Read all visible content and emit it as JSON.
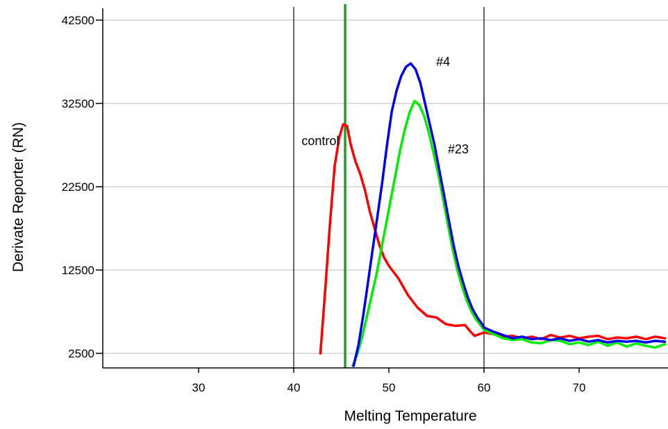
{
  "chart_data": {
    "type": "line",
    "xlabel": "Melting Temperature",
    "ylabel": "Derivate Reporter (RN)",
    "xlim": [
      20,
      79
    ],
    "ylim": [
      1000,
      44000
    ],
    "x_ticks": [
      30,
      40,
      50,
      60,
      70
    ],
    "y_ticks": [
      2500,
      12500,
      22500,
      32500,
      42500
    ],
    "grid": "horizontal",
    "legend": "none",
    "vertical_lines": [
      {
        "x": 40,
        "color": "#000000"
      },
      {
        "x": 45.4,
        "color": "#2a9a2a"
      },
      {
        "x": 60,
        "color": "#000000"
      }
    ],
    "annotations": [
      {
        "text": "control",
        "x": 42.8,
        "y": 28000
      },
      {
        "text": "#4",
        "x": 55.7,
        "y": 37500
      },
      {
        "text": "#23",
        "x": 57.3,
        "y": 27000
      }
    ],
    "series": [
      {
        "color": "#ff0000",
        "x": [
          42.8,
          43.3,
          43.8,
          44.3,
          44.8,
          45.2,
          45.6,
          46.0,
          46.5,
          47.0,
          47.5,
          48.0,
          48.5,
          49.0,
          49.5,
          50.0,
          51.0,
          52.0,
          53.0,
          54.0,
          55.0,
          56.0,
          57.0,
          58.0,
          58.5,
          59.0,
          60.0,
          61.0,
          62.0,
          63.0,
          64.0,
          65.0,
          66.0,
          67.0,
          68.0,
          69.0,
          70.0,
          71.0,
          72.0,
          73.0,
          74.0,
          75.0,
          76.0,
          77.0,
          78.0,
          79.0
        ],
        "y": [
          2500,
          10000,
          18000,
          25000,
          28500,
          30000,
          29800,
          27500,
          25500,
          24000,
          22000,
          19500,
          17500,
          15500,
          14000,
          13000,
          11500,
          9500,
          8000,
          7000,
          6800,
          6000,
          5800,
          5900,
          5200,
          4600,
          5000,
          4800,
          4500,
          4600,
          4300,
          4500,
          4200,
          4700,
          4400,
          4600,
          4300,
          4500,
          4600,
          4200,
          4400,
          4300,
          4500,
          4200,
          4500,
          4300
        ]
      },
      {
        "color": "#00ee00",
        "x": [
          46.2,
          46.7,
          47.2,
          47.7,
          48.2,
          48.7,
          49.2,
          49.7,
          50.2,
          50.7,
          51.2,
          51.7,
          52.2,
          52.7,
          53.2,
          53.7,
          54.2,
          54.7,
          55.2,
          55.7,
          56.2,
          56.7,
          57.2,
          57.7,
          58.2,
          58.7,
          59.2,
          59.7,
          60.0,
          61.0,
          62.0,
          63.0,
          64.0,
          65.0,
          66.0,
          67.0,
          68.0,
          69.0,
          70.0,
          71.0,
          72.0,
          73.0,
          74.0,
          75.0,
          76.0,
          77.0,
          78.0,
          79.0
        ],
        "y": [
          1000,
          2500,
          4500,
          7000,
          9500,
          12000,
          15000,
          18000,
          21000,
          24000,
          27000,
          29500,
          31500,
          32800,
          32300,
          31000,
          29000,
          26500,
          24000,
          21000,
          18000,
          15000,
          12500,
          10500,
          8800,
          7500,
          6500,
          5800,
          5300,
          4800,
          4300,
          4100,
          4200,
          3800,
          3700,
          4100,
          4000,
          3600,
          3800,
          3500,
          3900,
          3400,
          3800,
          3300,
          3700,
          3400,
          3200,
          3600
        ]
      },
      {
        "color": "#0000ee",
        "x": [
          46.3,
          46.8,
          47.3,
          47.8,
          48.3,
          48.8,
          49.3,
          49.8,
          50.3,
          50.8,
          51.3,
          51.8,
          52.3,
          52.8,
          53.3,
          53.8,
          54.3,
          54.8,
          55.3,
          55.8,
          56.3,
          56.8,
          57.3,
          57.8,
          58.3,
          58.8,
          59.3,
          59.8,
          60.0,
          61.0,
          62.0,
          63.0,
          64.0,
          65.0,
          66.0,
          67.0,
          68.0,
          69.0,
          70.0,
          71.0,
          72.0,
          73.0,
          74.0,
          75.0,
          76.0,
          77.0,
          78.0,
          79.0
        ],
        "y": [
          1000,
          3500,
          7000,
          11000,
          15000,
          19000,
          23000,
          27500,
          31500,
          34000,
          35800,
          36900,
          37300,
          36600,
          35000,
          32500,
          30000,
          27500,
          24500,
          21500,
          18500,
          15500,
          13000,
          11000,
          9200,
          7800,
          6800,
          6000,
          5600,
          5100,
          4700,
          4300,
          4500,
          4200,
          4300,
          4100,
          4300,
          4000,
          4200,
          3900,
          4100,
          3800,
          4000,
          3900,
          4000,
          3800,
          4000,
          3900
        ]
      }
    ]
  }
}
